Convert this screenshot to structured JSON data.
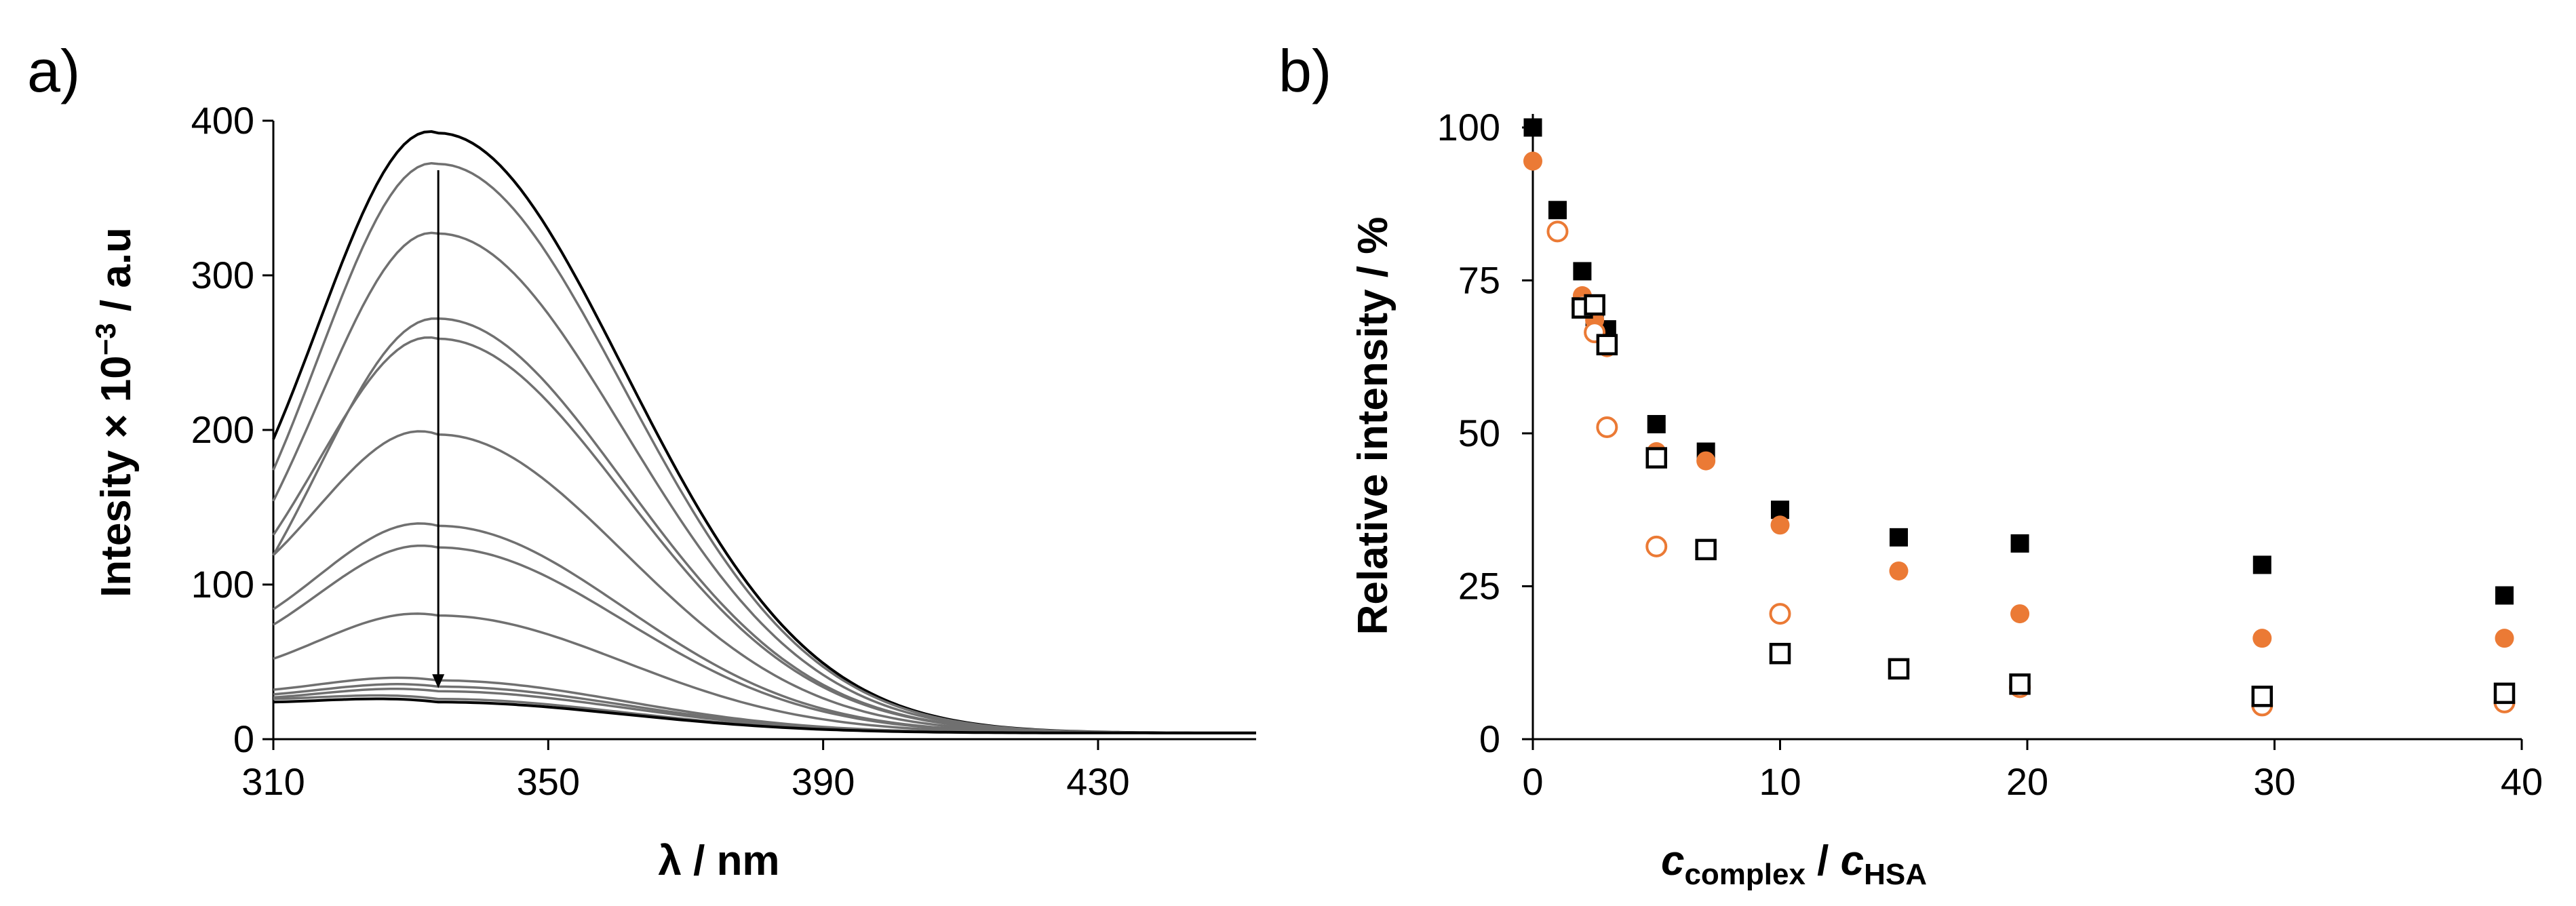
{
  "chart_data": [
    {
      "panel": "a)",
      "type": "line",
      "xlabel": "λ / nm",
      "ylabel": "Intesity × 10−3 / a.u",
      "ylabel_main": "Intesity × 10",
      "ylabel_sup": "−3",
      "ylabel_tail": " / a.u",
      "xlim": [
        310,
        453
      ],
      "ylim": [
        0,
        400
      ],
      "xticks": [
        "310",
        "350",
        "390",
        "430"
      ],
      "yticks": [
        "0",
        "100",
        "200",
        "300",
        "400"
      ],
      "annotation": "downward arrow at 334 nm from 368 to 33 indicating decreasing intensity",
      "peak_nm": 334,
      "peaks": [
        388,
        368,
        323,
        268,
        255,
        193,
        134,
        120,
        76,
        34,
        30,
        27,
        22,
        20
      ],
      "starts": [
        190,
        170,
        150,
        115,
        128,
        115,
        80,
        70,
        48,
        28,
        25,
        23,
        22,
        20
      ],
      "colors": {
        "first_last": "#000000",
        "intermediate": "#707070"
      }
    },
    {
      "panel": "b)",
      "type": "scatter",
      "xlabel": "ccomplex / cHSA",
      "xlabel_c1": "c",
      "xlabel_sub1": "complex",
      "xlabel_mid": " / ",
      "xlabel_c2": "c",
      "xlabel_sub2": "HSA",
      "ylabel": "Relative intensity / %",
      "xlim": [
        0,
        40
      ],
      "ylim": [
        0,
        100
      ],
      "xticks": [
        "0",
        "10",
        "20",
        "30",
        "40"
      ],
      "yticks": [
        "0",
        "25",
        "50",
        "75",
        "100"
      ],
      "series": [
        {
          "name": "filled black squares",
          "marker": "square",
          "filled": true,
          "color": "#000000",
          "x": [
            0,
            1,
            2,
            2.5,
            3,
            5,
            7,
            10,
            14.8,
            19.7,
            29.5,
            39.3
          ],
          "y": [
            100,
            86.5,
            76.5,
            69,
            67,
            51.5,
            47,
            37.5,
            33,
            32,
            28.5,
            23.5
          ]
        },
        {
          "name": "filled orange circles",
          "marker": "circle",
          "filled": true,
          "color": "#EB7A35",
          "x": [
            0,
            2,
            2.5,
            3,
            5,
            7,
            10,
            14.8,
            19.7,
            29.5,
            39.3
          ],
          "y": [
            94.5,
            72.5,
            68.5,
            64,
            47,
            45.5,
            35,
            27.5,
            20.5,
            16.5,
            16.5
          ]
        },
        {
          "name": "open orange circles",
          "marker": "circle",
          "filled": false,
          "color": "#EB7A35",
          "x": [
            1,
            2,
            2.5,
            3,
            5,
            10,
            19.7,
            29.5,
            39.3
          ],
          "y": [
            83,
            71,
            66.5,
            51,
            31.5,
            20.5,
            8.5,
            5.5,
            6
          ]
        },
        {
          "name": "open black squares",
          "marker": "square",
          "filled": false,
          "color": "#000000",
          "x": [
            2,
            2.5,
            3,
            5,
            7,
            10,
            14.8,
            19.7,
            29.5,
            39.3
          ],
          "y": [
            70.5,
            71,
            64.5,
            46,
            31,
            14,
            11.5,
            9,
            7,
            7.5
          ]
        }
      ]
    }
  ]
}
